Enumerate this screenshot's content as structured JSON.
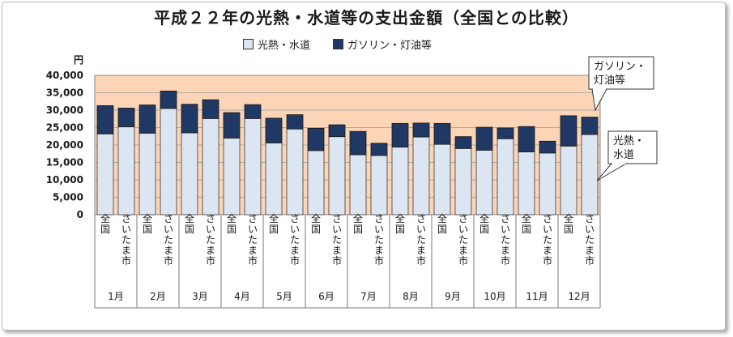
{
  "chart_data": {
    "type": "bar",
    "stacked": true,
    "title": "平成２２年の光熱・水道等の支出金額（全国との比較）",
    "unit": "円",
    "ylim": [
      0,
      40000
    ],
    "yticks": [
      "40,000",
      "35,000",
      "30,000",
      "25,000",
      "20,000",
      "15,000",
      "10,000",
      "5,000",
      "0"
    ],
    "legend_position": "top",
    "groups": [
      "1月",
      "2月",
      "3月",
      "4月",
      "5月",
      "6月",
      "7月",
      "8月",
      "9月",
      "10月",
      "11月",
      "12月"
    ],
    "subcategories": [
      "全国",
      "さいたま市"
    ],
    "series": [
      {
        "name": "光熱・水道",
        "color": "#dce6f2",
        "values": [
          23200,
          25200,
          23400,
          30500,
          23500,
          27600,
          22000,
          27600,
          20600,
          24600,
          18400,
          22400,
          17200,
          17000,
          19400,
          22300,
          20200,
          19000,
          18500,
          21800,
          18000,
          17700,
          19700,
          23000
        ]
      },
      {
        "name": "ガソリン・灯油等",
        "color": "#1f3864",
        "values": [
          8100,
          5400,
          8100,
          5000,
          8200,
          5400,
          7300,
          4000,
          7100,
          4100,
          6400,
          3400,
          6700,
          3500,
          6800,
          4000,
          6000,
          3400,
          6600,
          3100,
          7300,
          3400,
          8700,
          5000
        ]
      }
    ],
    "annotations": [
      {
        "text": [
          "ガソリン・",
          "灯油等"
        ]
      },
      {
        "text": [
          "光熱・",
          "水道"
        ]
      }
    ]
  }
}
